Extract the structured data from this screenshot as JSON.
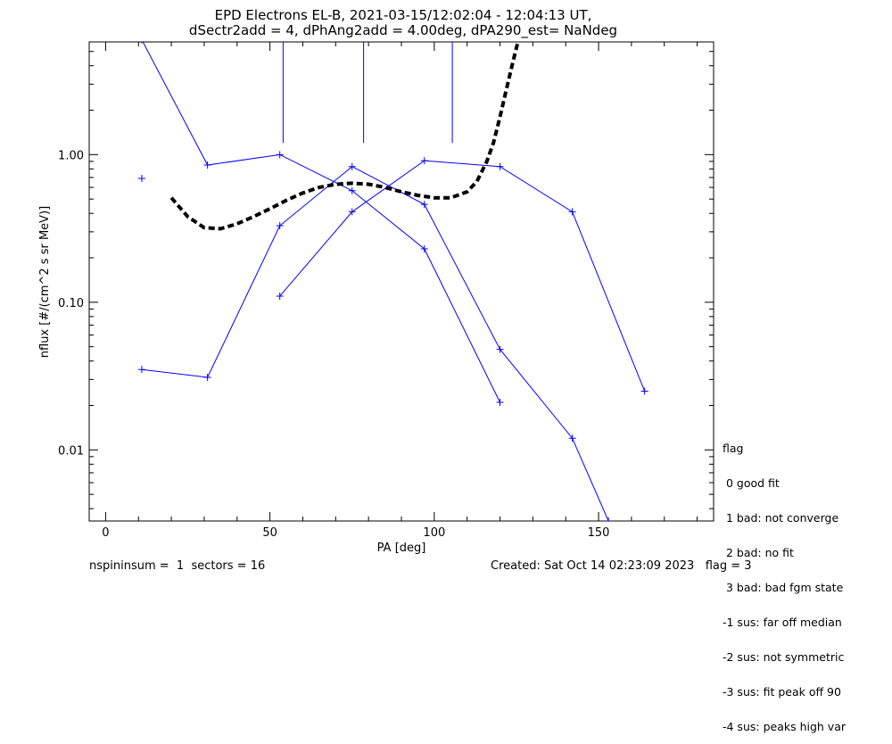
{
  "chart_data": {
    "type": "line",
    "title_line1": "EPD Electrons EL-B, 2021-03-15/12:02:04 - 12:04:13 UT,",
    "title_line2": "dSectr2add = 4, dPhAng2add = 4.00deg, dPA290_est=   NaNdeg",
    "xlabel": "PA [deg]",
    "ylabel": "nflux [#/(cm^2 s sr MeV)]",
    "xlim": [
      -5,
      185
    ],
    "ylim": [
      0.0033,
      5.8
    ],
    "y_scale": "log",
    "x_ticks": [
      0,
      50,
      100,
      150
    ],
    "x_tick_labels": [
      "0",
      "50",
      "100",
      "150"
    ],
    "y_major_ticks": [
      0.01,
      0.1,
      1.0
    ],
    "y_tick_labels": [
      "0.01",
      "0.10",
      "1.00"
    ],
    "color": "#0000ff",
    "fit_color": "#000000",
    "series": [
      {
        "x": [
          11,
          31,
          53,
          75,
          97,
          120
        ],
        "y": [
          6.0,
          0.85,
          1.0,
          0.57,
          0.23,
          0.021
        ]
      },
      {
        "x": [
          11,
          31,
          53,
          75,
          97,
          120,
          142,
          153
        ],
        "y": [
          0.035,
          0.031,
          0.33,
          0.83,
          0.46,
          0.048,
          0.012,
          0.0033
        ]
      },
      {
        "x": [
          53,
          75,
          97,
          120,
          142,
          164
        ],
        "y": [
          0.11,
          0.41,
          0.91,
          0.83,
          0.41,
          0.025
        ]
      }
    ],
    "isolated_points": [
      {
        "x": 11,
        "y": 0.69
      }
    ],
    "vertical_markers": [
      {
        "x": 54,
        "y_bottom": 1.2
      },
      {
        "x": 78.5,
        "y_bottom": 1.2
      },
      {
        "x": 105.5,
        "y_bottom": 1.2
      }
    ],
    "fit_curve": {
      "x": [
        20,
        25,
        30,
        35,
        40,
        45,
        50,
        55,
        60,
        65,
        70,
        75,
        80,
        85,
        90,
        95,
        100,
        105,
        110,
        113,
        116,
        118,
        120,
        122,
        124,
        126
      ],
      "y": [
        0.51,
        0.38,
        0.32,
        0.315,
        0.34,
        0.38,
        0.43,
        0.49,
        0.55,
        0.6,
        0.63,
        0.64,
        0.63,
        0.6,
        0.56,
        0.53,
        0.51,
        0.51,
        0.56,
        0.66,
        0.9,
        1.2,
        1.8,
        2.8,
        4.3,
        6.5
      ]
    }
  },
  "legend": {
    "title": "flag",
    "items": [
      " 0 good fit",
      " 1 bad: not converge",
      " 2 bad: no fit",
      " 3 bad: bad fgm state",
      "-1 sus: far off median",
      "-2 sus: not symmetric",
      "-3 sus: fit peak off 90",
      "-4 sus: peaks high var"
    ]
  },
  "footer": {
    "left": "nspininsum =  1  sectors = 16",
    "right": "Created: Sat Oct 14 02:23:09 2023   flag = 3"
  }
}
